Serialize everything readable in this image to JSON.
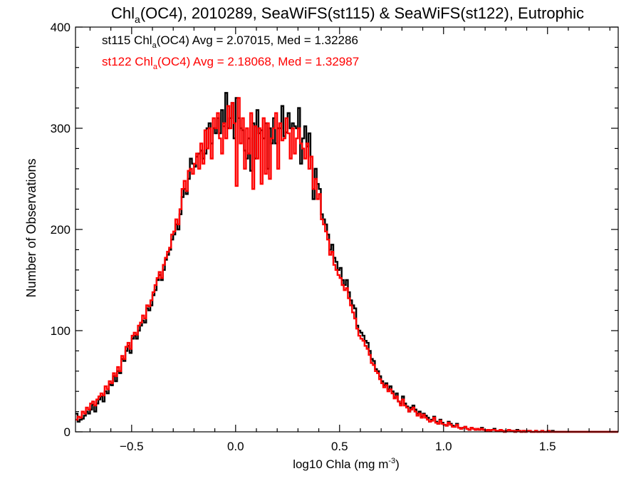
{
  "chart_data": {
    "type": "line",
    "title": {
      "prefix": "Chl",
      "subscript": "a",
      "suffix": "(OC4), 2010289, SeaWiFS(st115) & SeaWiFS(st122), Eutrophic"
    },
    "xlabel": {
      "prefix": "log10 Chla (mg m",
      "superscript": "-3",
      "suffix": ")"
    },
    "ylabel": "Number of Observations",
    "xlim": [
      -0.77,
      1.84
    ],
    "ylim": [
      0,
      400
    ],
    "x_ticks": [
      -0.5,
      0.0,
      0.5,
      1.0,
      1.5
    ],
    "x_tick_labels": [
      "−0.5",
      "0.0",
      "0.5",
      "1.0",
      "1.5"
    ],
    "y_ticks": [
      0,
      100,
      200,
      300,
      400
    ],
    "y_tick_labels": [
      "0",
      "100",
      "200",
      "300",
      "400"
    ],
    "annotations": [
      {
        "id": "st115",
        "color": "#000000",
        "prefix": "st115 Chl",
        "subscript": "a",
        "suffix": "(OC4) Avg = 2.07015, Med = 1.32286"
      },
      {
        "id": "st122",
        "color": "#ff0000",
        "prefix": "st122 Chl",
        "subscript": "a",
        "suffix": "(OC4) Avg = 2.18068, Med = 1.32987"
      }
    ],
    "series": [
      {
        "id": "st115",
        "color": "#000000",
        "bin_width": 0.01,
        "x_start": -0.77,
        "values": [
          18,
          10,
          12,
          13,
          16,
          20,
          18,
          22,
          27,
          20,
          28,
          32,
          35,
          30,
          40,
          38,
          47,
          46,
          55,
          50,
          60,
          58,
          72,
          70,
          80,
          85,
          78,
          92,
          95,
          92,
          100,
          105,
          110,
          108,
          122,
          120,
          125,
          135,
          140,
          150,
          155,
          150,
          160,
          170,
          175,
          180,
          190,
          195,
          205,
          200,
          215,
          232,
          240,
          235,
          250,
          270,
          265,
          262,
          272,
          275,
          278,
          270,
          275,
          300,
          305,
          285,
          300,
          295,
          310,
          295,
          318,
          302,
          335,
          300,
          310,
          325,
          290,
          330,
          310,
          300,
          298,
          278,
          270,
          290,
          258,
          305,
          270,
          318,
          295,
          298,
          290,
          305,
          260,
          300,
          285,
          310,
          285,
          300,
          300,
          322,
          292,
          296,
          315,
          300,
          305,
          302,
          300,
          320,
          265,
          290,
          302,
          282,
          295,
          272,
          230,
          260,
          245,
          240,
          215,
          210,
          205,
          195,
          180,
          185,
          172,
          168,
          160,
          162,
          150,
          145,
          150,
          138,
          130,
          125,
          122,
          105,
          100,
          98,
          95,
          90,
          88,
          80,
          72,
          70,
          62,
          60,
          55,
          50,
          46,
          48,
          42,
          45,
          40,
          34,
          38,
          30,
          28,
          35,
          28,
          25,
          20,
          24,
          26,
          22,
          18,
          20,
          15,
          18,
          16,
          14,
          10,
          12,
          15,
          10,
          8,
          12,
          9,
          7,
          6,
          10,
          8,
          6,
          5,
          8,
          4,
          3,
          4,
          5,
          3,
          2,
          4,
          3,
          2,
          3,
          2,
          4,
          2,
          1,
          2,
          1,
          2,
          3,
          1,
          1,
          2,
          1,
          0,
          1,
          2,
          1,
          1,
          0,
          2,
          1,
          0,
          1,
          0,
          1,
          1,
          0,
          0,
          1,
          0,
          0,
          1,
          0,
          0,
          0,
          0,
          1,
          0,
          0,
          0,
          0,
          0,
          0,
          0,
          0,
          0,
          0,
          0,
          0,
          0,
          0,
          0,
          0,
          0,
          0,
          0,
          0,
          0,
          0,
          0,
          0,
          0,
          0,
          0,
          0,
          0,
          0,
          0,
          0,
          0,
          0,
          0,
          0,
          0
        ]
      },
      {
        "id": "st122",
        "color": "#ff0000",
        "bin_width": 0.01,
        "x_start": -0.77,
        "values": [
          12,
          15,
          14,
          20,
          18,
          24,
          22,
          28,
          30,
          26,
          32,
          35,
          38,
          36,
          45,
          42,
          50,
          48,
          58,
          55,
          64,
          60,
          75,
          72,
          84,
          88,
          82,
          95,
          98,
          96,
          105,
          108,
          115,
          112,
          125,
          124,
          130,
          138,
          145,
          152,
          158,
          152,
          165,
          172,
          178,
          182,
          195,
          198,
          210,
          205,
          220,
          240,
          248,
          238,
          258,
          260,
          255,
          265,
          275,
          260,
          285,
          265,
          298,
          280,
          300,
          270,
          310,
          300,
          315,
          290,
          275,
          305,
          290,
          322,
          300,
          325,
          305,
          243,
          330,
          285,
          310,
          260,
          300,
          275,
          315,
          240,
          302,
          270,
          300,
          245,
          310,
          255,
          305,
          250,
          290,
          300,
          315,
          260,
          305,
          288,
          290,
          310,
          295,
          270,
          300,
          275,
          290,
          300,
          285,
          280,
          270,
          285,
          260,
          272,
          240,
          250,
          230,
          235,
          210,
          205,
          198,
          190,
          175,
          178,
          165,
          160,
          155,
          152,
          145,
          140,
          142,
          132,
          125,
          118,
          112,
          102,
          95,
          92,
          90,
          85,
          82,
          76,
          68,
          66,
          60,
          58,
          52,
          48,
          44,
          46,
          40,
          42,
          38,
          33,
          35,
          30,
          26,
          32,
          26,
          24,
          20,
          22,
          24,
          20,
          16,
          18,
          14,
          17,
          14,
          12,
          10,
          11,
          14,
          9,
          8,
          11,
          8,
          7,
          6,
          9,
          7,
          5,
          5,
          7,
          4,
          3,
          4,
          5,
          3,
          2,
          4,
          3,
          2,
          3,
          2,
          3,
          2,
          1,
          2,
          1,
          2,
          2,
          1,
          1,
          2,
          1,
          0,
          1,
          2,
          1,
          1,
          0,
          1,
          1,
          0,
          1,
          0,
          1,
          1,
          0,
          0,
          1,
          0,
          0,
          1,
          0,
          0,
          1,
          0,
          0,
          0,
          0,
          0,
          0,
          0,
          0,
          0,
          0,
          0,
          0,
          0,
          0,
          0,
          0,
          0,
          0,
          0,
          0,
          0,
          0,
          0,
          0,
          0,
          0,
          0,
          0,
          0,
          0,
          0,
          0,
          0,
          0,
          0,
          0,
          0,
          0,
          0,
          0,
          0,
          0
        ]
      }
    ]
  }
}
